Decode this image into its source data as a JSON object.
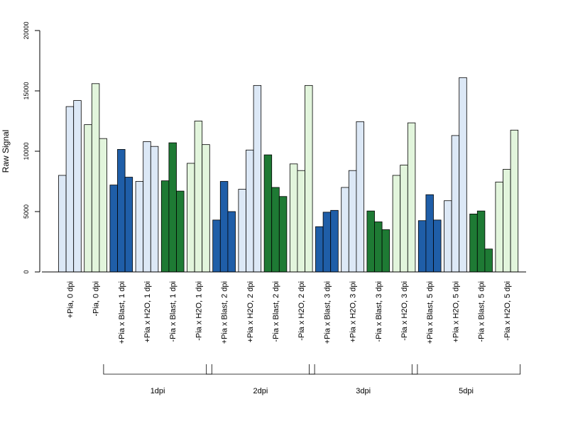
{
  "chart_data": {
    "type": "bar",
    "title": "",
    "xlabel": "",
    "ylabel": "Raw Signal",
    "ylim": [
      0,
      20000
    ],
    "yticks": [
      "0",
      "5000",
      "10000",
      "15000",
      "20000"
    ],
    "grid": false,
    "legend": "none",
    "categories": [
      "+Pia, 0 dpi",
      "-Pia, 0 dpi",
      "+Pia x Blast, 1 dpi",
      "+Pia x H2O, 1 dpi",
      "-Pia x Blast, 1 dpi",
      "-Pia x H2O, 1 dpi",
      "+Pia x Blast, 2 dpi",
      "+Pia x H2O, 2 dpi",
      "-Pia x Blast, 2 dpi",
      "-Pia x H2O, 2 dpi",
      "+Pia x Blast, 3 dpi",
      "+Pia x H2O, 3 dpi",
      "-Pia x Blast, 3 dpi",
      "-Pia x H2O, 3 dpi",
      "+Pia x Blast, 5 dpi",
      "+Pia x H2O, 5 dpi",
      "-Pia x Blast, 5 dpi",
      "-Pia x H2O, 5 dpi"
    ],
    "replicate_values": [
      [
        8000,
        13700,
        14200
      ],
      [
        12200,
        15600,
        11050
      ],
      [
        7200,
        10150,
        7850
      ],
      [
        7500,
        10800,
        10400
      ],
      [
        7550,
        10700,
        6700
      ],
      [
        9000,
        12500,
        10550
      ],
      [
        4300,
        7500,
        5000
      ],
      [
        6850,
        10100,
        15450
      ],
      [
        9700,
        7000,
        6250
      ],
      [
        8950,
        8400,
        15450
      ],
      [
        3750,
        4950,
        5100
      ],
      [
        7000,
        8400,
        12450
      ],
      [
        5050,
        4150,
        3500
      ],
      [
        8000,
        8850,
        12350
      ],
      [
        4250,
        6400,
        4300
      ],
      [
        5900,
        11300,
        16100
      ],
      [
        4800,
        5050,
        1900
      ],
      [
        7450,
        8500,
        11750
      ]
    ],
    "bar_colors": [
      "#dce8f6",
      "#e2f5dc",
      "#1f5ea8",
      "#dce8f6",
      "#1e7a34",
      "#e2f5dc",
      "#1f5ea8",
      "#dce8f6",
      "#1e7a34",
      "#e2f5dc",
      "#1f5ea8",
      "#dce8f6",
      "#1e7a34",
      "#e2f5dc",
      "#1f5ea8",
      "#dce8f6",
      "#1e7a34",
      "#e2f5dc"
    ],
    "groups": [
      {
        "label": "1dpi",
        "from": 2,
        "to": 5
      },
      {
        "label": "2dpi",
        "from": 6,
        "to": 9
      },
      {
        "label": "3dpi",
        "from": 10,
        "to": 13
      },
      {
        "label": "5dpi",
        "from": 14,
        "to": 17
      }
    ]
  }
}
